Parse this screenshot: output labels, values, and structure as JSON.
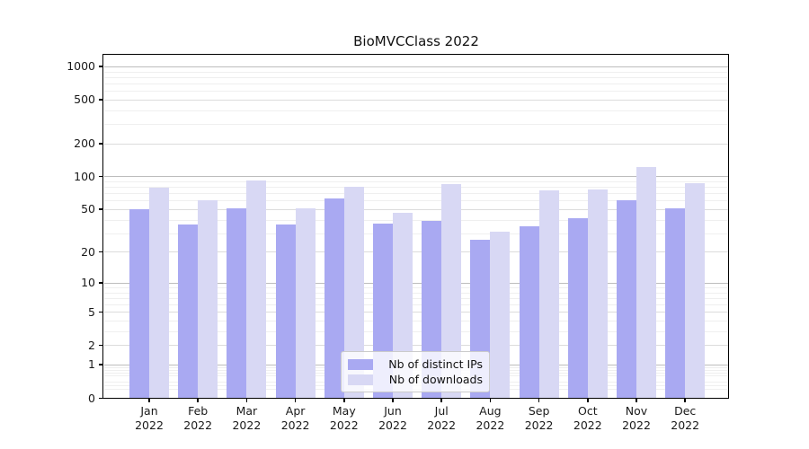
{
  "title": "BioMVCClass 2022",
  "chart_data": {
    "type": "bar",
    "title": "BioMVCClass 2022",
    "categories": [
      "Jan 2022",
      "Feb 2022",
      "Mar 2022",
      "Apr 2022",
      "May 2022",
      "Jun 2022",
      "Jul 2022",
      "Aug 2022",
      "Sep 2022",
      "Oct 2022",
      "Nov 2022",
      "Dec 2022"
    ],
    "series": [
      {
        "name": "Nb of distinct IPs",
        "color": "#a9a9f2",
        "values": [
          50,
          36,
          51,
          36,
          63,
          37,
          39,
          26,
          35,
          41,
          61,
          51
        ]
      },
      {
        "name": "Nb of downloads",
        "color": "#d8d8f4",
        "values": [
          79,
          61,
          92,
          51,
          81,
          46,
          85,
          31,
          75,
          76,
          121,
          87
        ]
      }
    ],
    "xlabel": "",
    "ylabel": "",
    "yscale": "log1p",
    "ylim": [
      0,
      1275
    ],
    "yticks": [
      0,
      1,
      2,
      5,
      10,
      20,
      50,
      100,
      200,
      500,
      1000
    ],
    "grid": true,
    "legend_position": "lower center",
    "colors": {
      "grid_major": "#bdbdbd",
      "grid_mid": "#dcdcdc",
      "grid_minor": "#efefef",
      "spine": "#000000",
      "text": "#1a1a1a"
    }
  }
}
